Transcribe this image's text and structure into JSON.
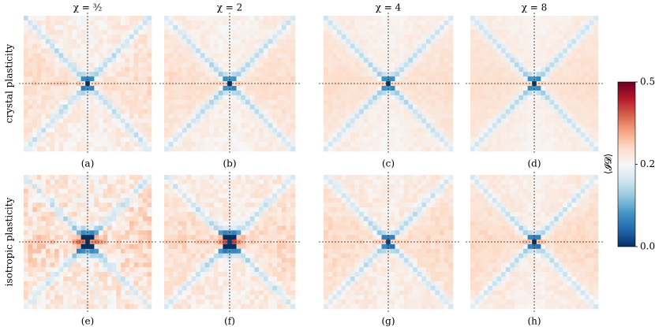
{
  "figure": {
    "columns": [
      "χ = ³⁄₂",
      "χ = 2",
      "χ = 4",
      "χ = 8"
    ],
    "rows": [
      "crystal plasticity",
      "isotropic plasticity"
    ],
    "panels": [
      "(a)",
      "(b)",
      "(c)",
      "(d)",
      "(e)",
      "(f)",
      "(g)",
      "(h)"
    ],
    "colorbar": {
      "label": "⟨𝓘𝓓⟩",
      "lim": [
        0,
        0.5
      ],
      "ticks": [
        {
          "value": 0,
          "label": "0.00"
        },
        {
          "value": 0.25,
          "label": "0.25"
        },
        {
          "value": 0.5,
          "label": "0.50"
        }
      ]
    }
  }
}
